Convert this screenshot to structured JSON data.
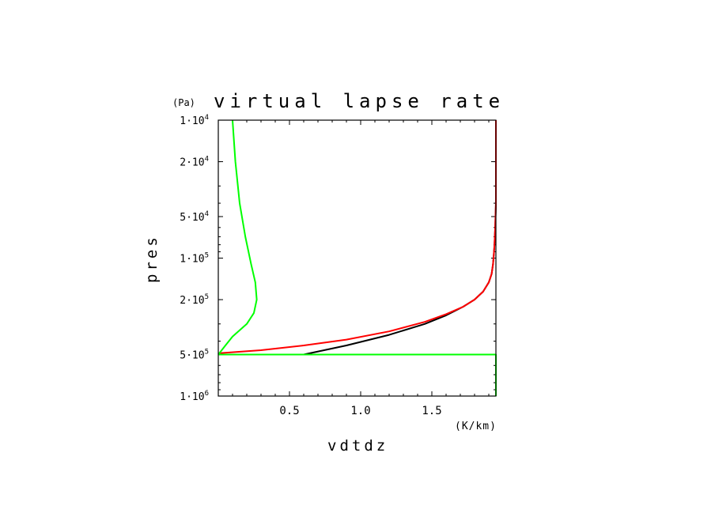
{
  "chart_data": {
    "type": "line",
    "title": "virtual lapse rate",
    "y_unit": "(Pa)",
    "x_unit": "(K/km)",
    "xlabel": "vdtdz",
    "ylabel": "pres",
    "xlim": [
      0,
      1.95
    ],
    "ylim": [
      10000,
      1000000
    ],
    "y_scale": "log",
    "y_inverted": true,
    "x_ticks": [
      {
        "value": 0.5,
        "label": "0.5"
      },
      {
        "value": 1.0,
        "label": "1.0"
      },
      {
        "value": 1.5,
        "label": "1.5"
      }
    ],
    "y_ticks": [
      {
        "value": 10000,
        "mant": "1",
        "exp": "4"
      },
      {
        "value": 20000,
        "mant": "2",
        "exp": "4"
      },
      {
        "value": 50000,
        "mant": "5",
        "exp": "4"
      },
      {
        "value": 100000,
        "mant": "1",
        "exp": "5"
      },
      {
        "value": 200000,
        "mant": "2",
        "exp": "5"
      },
      {
        "value": 500000,
        "mant": "5",
        "exp": "5"
      },
      {
        "value": 1000000,
        "mant": "1",
        "exp": "6"
      }
    ],
    "series": [
      {
        "color": "#000000",
        "points": [
          [
            0.6,
            500000
          ],
          [
            0.9,
            430000
          ],
          [
            1.2,
            360000
          ],
          [
            1.45,
            300000
          ],
          [
            1.6,
            260000
          ],
          [
            1.72,
            225000
          ],
          [
            1.8,
            200000
          ],
          [
            1.86,
            175000
          ],
          [
            1.9,
            150000
          ],
          [
            1.92,
            130000
          ],
          [
            1.93,
            110000
          ],
          [
            1.935,
            95000
          ],
          [
            1.94,
            80000
          ],
          [
            1.945,
            60000
          ],
          [
            1.95,
            40000
          ],
          [
            1.95,
            10000
          ]
        ]
      },
      {
        "color": "#ff0000",
        "points": [
          [
            0.0,
            490000
          ],
          [
            0.3,
            465000
          ],
          [
            0.6,
            430000
          ],
          [
            0.9,
            390000
          ],
          [
            1.2,
            340000
          ],
          [
            1.45,
            290000
          ],
          [
            1.6,
            255000
          ],
          [
            1.72,
            225000
          ],
          [
            1.8,
            200000
          ],
          [
            1.86,
            175000
          ],
          [
            1.9,
            150000
          ],
          [
            1.92,
            130000
          ],
          [
            1.93,
            110000
          ],
          [
            1.935,
            95000
          ],
          [
            1.94,
            80000
          ],
          [
            1.945,
            60000
          ],
          [
            1.95,
            40000
          ],
          [
            1.95,
            10000
          ]
        ]
      },
      {
        "color": "#00ff00",
        "points": [
          [
            0.0,
            500000
          ],
          [
            0.05,
            430000
          ],
          [
            0.1,
            370000
          ],
          [
            0.2,
            300000
          ],
          [
            0.25,
            250000
          ],
          [
            0.27,
            200000
          ],
          [
            0.26,
            150000
          ],
          [
            0.23,
            110000
          ],
          [
            0.19,
            70000
          ],
          [
            0.15,
            40000
          ],
          [
            0.12,
            20000
          ],
          [
            0.1,
            10000
          ]
        ]
      },
      {
        "color": "#00ff00",
        "points": [
          [
            0.0,
            500000
          ],
          [
            1.95,
            500000
          ],
          [
            1.95,
            1000000
          ]
        ]
      }
    ]
  }
}
